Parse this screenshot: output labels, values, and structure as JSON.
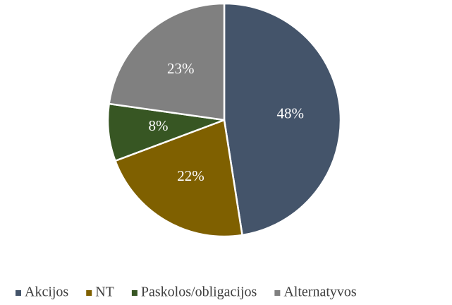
{
  "chart_data": {
    "type": "pie",
    "categories": [
      "Akcijos",
      "NT",
      "Paskolos/obligacijos",
      "Alternatyvos"
    ],
    "values": [
      48,
      22,
      8,
      23
    ],
    "value_labels": [
      "48%",
      "22%",
      "8%",
      "23%"
    ],
    "colors": [
      "#44546a",
      "#7f6000",
      "#375623",
      "#808080"
    ],
    "legend": "bottom"
  }
}
